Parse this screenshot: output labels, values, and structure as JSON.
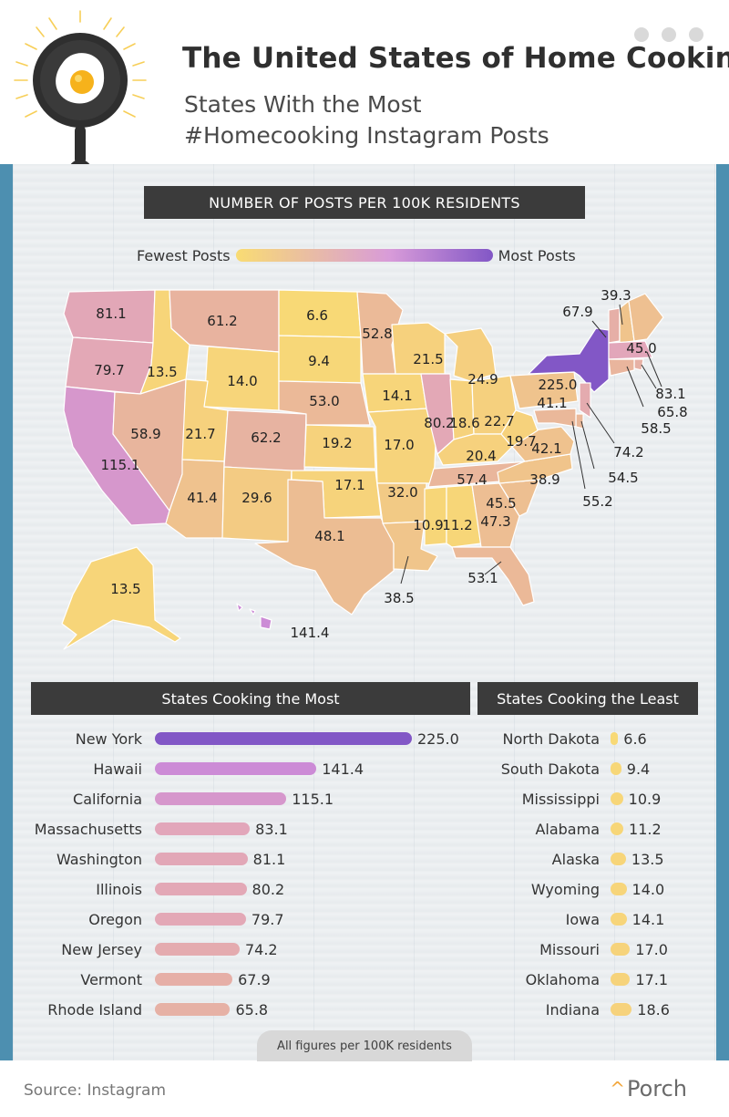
{
  "header": {
    "title": "The United States of Home Cooking",
    "subtitle_line1": "States With the Most",
    "subtitle_line2": "#Homecooking Instagram Posts"
  },
  "map_section": {
    "band_label": "NUMBER OF POSTS PER 100K RESIDENTS",
    "legend_low": "Fewest Posts",
    "legend_high": "Most Posts"
  },
  "colors": {
    "low": "#f9dc73",
    "mid": "#e8b49e",
    "high": "#8257c6",
    "band": "#3b3b3b",
    "accent_orange": "#f2a63b"
  },
  "map_labels": {
    "WA": "81.1",
    "OR": "79.7",
    "CA": "115.1",
    "ID": "13.5",
    "NV": "58.9",
    "MT": "61.2",
    "WY": "14.0",
    "UT": "21.7",
    "AZ": "41.4",
    "CO": "62.2",
    "NM": "29.6",
    "ND": "6.6",
    "SD": "9.4",
    "NE": "53.0",
    "KS": "19.2",
    "OK": "17.1",
    "TX": "48.1",
    "MN": "52.8",
    "IA": "14.1",
    "MO": "17.0",
    "AR": "32.0",
    "LA": "38.5",
    "WI": "21.5",
    "IL": "80.2",
    "MI": "24.9",
    "IN": "18.6",
    "OH": "22.7",
    "KY": "20.4",
    "TN": "57.4",
    "MS": "10.9",
    "AL": "11.2",
    "GA": "47.3",
    "FL": "53.1",
    "SC": "45.5",
    "NC": "38.9",
    "VA": "42.1",
    "WV": "19.7",
    "PA": "41.1",
    "NY": "225.0",
    "VT": "67.9",
    "NH": "39.3",
    "ME": "45.0",
    "MA": "83.1",
    "RI": "65.8",
    "CT": "58.5",
    "NJ": "74.2",
    "DE": "54.5",
    "MD": "55.2",
    "AK": "13.5",
    "HI": "141.4"
  },
  "chart_data": [
    {
      "type": "bar",
      "title": "States Cooking the Most",
      "categories": [
        "New York",
        "Hawaii",
        "California",
        "Massachusetts",
        "Washington",
        "Illinois",
        "Oregon",
        "New Jersey",
        "Vermont",
        "Rhode Island"
      ],
      "values": [
        225.0,
        141.4,
        115.1,
        83.1,
        81.1,
        80.2,
        79.7,
        74.2,
        67.9,
        65.8
      ],
      "value_labels": [
        "225.0",
        "141.4",
        "115.1",
        "83.1",
        "81.1",
        "80.2",
        "79.7",
        "74.2",
        "67.9",
        "65.8"
      ],
      "orientation": "horizontal",
      "xlim": [
        0,
        225
      ]
    },
    {
      "type": "bar",
      "title": "States Cooking the Least",
      "categories": [
        "North Dakota",
        "South Dakota",
        "Mississippi",
        "Alabama",
        "Alaska",
        "Wyoming",
        "Iowa",
        "Missouri",
        "Oklahoma",
        "Indiana"
      ],
      "values": [
        6.6,
        9.4,
        10.9,
        11.2,
        13.5,
        14.0,
        14.1,
        17.0,
        17.1,
        18.6
      ],
      "value_labels": [
        "6.6",
        "9.4",
        "10.9",
        "11.2",
        "13.5",
        "14.0",
        "14.1",
        "17.0",
        "17.1",
        "18.6"
      ],
      "orientation": "horizontal",
      "xlim": [
        0,
        225
      ]
    }
  ],
  "footnote": "All figures per 100K residents",
  "source": "Source: Instagram",
  "brand": "Porch"
}
